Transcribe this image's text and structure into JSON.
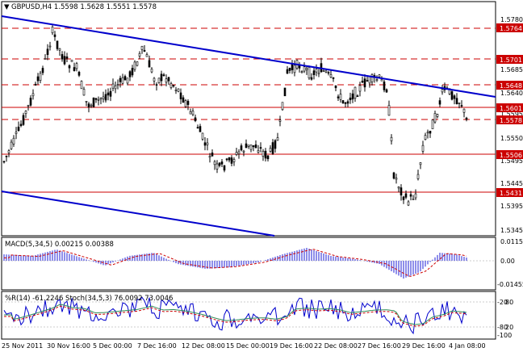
{
  "header": {
    "symbol_info": "GBPUSD,H4  1.5598 1.5628 1.5551 1.5578"
  },
  "colors": {
    "candle": "#000000",
    "trendline": "#0000CC",
    "level_line": "#CC0000",
    "level_tag_bg": "#CC0000",
    "macd_hist": "#4444DD",
    "macd_signal": "#CC0000",
    "wpr_line": "#0000CC",
    "stoch_main": "#2E8B57",
    "stoch_signal": "#CC0000"
  },
  "price_axis": {
    "ticks": [
      "1.5780",
      "1.5685",
      "1.5640",
      "1.5595",
      "1.5550",
      "1.5495",
      "1.5445",
      "1.5395",
      "1.5345"
    ]
  },
  "levels": [
    {
      "value": "1.5764",
      "dashed": true
    },
    {
      "value": "1.5701",
      "dashed": true
    },
    {
      "value": "1.5648",
      "dashed": true
    },
    {
      "value": "1.5601",
      "dashed": false
    },
    {
      "value": "1.5578",
      "dashed": true
    },
    {
      "value": "1.5506",
      "dashed": false
    },
    {
      "value": "1.5431",
      "dashed": false
    }
  ],
  "macd": {
    "label": "MACD(5,34,5) 0.00215 0.00388",
    "ticks": [
      "0.01155",
      "0.00",
      "-0.01455"
    ]
  },
  "oscillator": {
    "label": "%R(14) -61.2246   Stoch(34,5,3) 76.0092 73.0046",
    "ticks": [
      "-20",
      "80",
      "20",
      "-80",
      "-100"
    ]
  },
  "time_axis": {
    "labels": [
      "25 Nov 2011",
      "30 Nov 16:00",
      "5 Dec 00:00",
      "7 Dec 16:00",
      "12 Dec 08:00",
      "15 Dec 00:00",
      "19 Dec 16:00",
      "22 Dec 08:00",
      "27 Dec 16:00",
      "29 Dec 16:00",
      "4 Jan 08:00"
    ]
  }
}
